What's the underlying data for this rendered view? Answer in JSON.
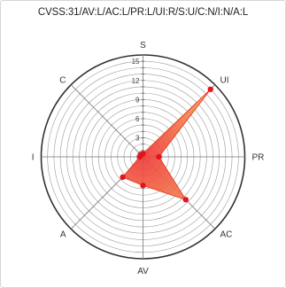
{
  "chart_data": {
    "type": "radar",
    "title": "CVSS:31/AV:L/AC:L/PR:L/UI:R/S:U/C:N/I:N/A:L",
    "axes": [
      "S",
      "UI",
      "PR",
      "AC",
      "AV",
      "A",
      "I",
      "C"
    ],
    "values": [
      0.5,
      15,
      2.5,
      9.5,
      4.5,
      4.5,
      0.5,
      0.5
    ],
    "rmax": 16,
    "tick_values": [
      3,
      6,
      9,
      12,
      15
    ],
    "tick_labels": [
      "3",
      "6",
      "9",
      "12",
      "15"
    ],
    "grid": true,
    "colors": {
      "fill_inner": "#ef3b3b",
      "fill_outer": "#f6b25a",
      "stroke": "#e8402a",
      "marker": "#e3141b",
      "grid": "#9a9a9a",
      "outer_ring": "#333333"
    }
  }
}
